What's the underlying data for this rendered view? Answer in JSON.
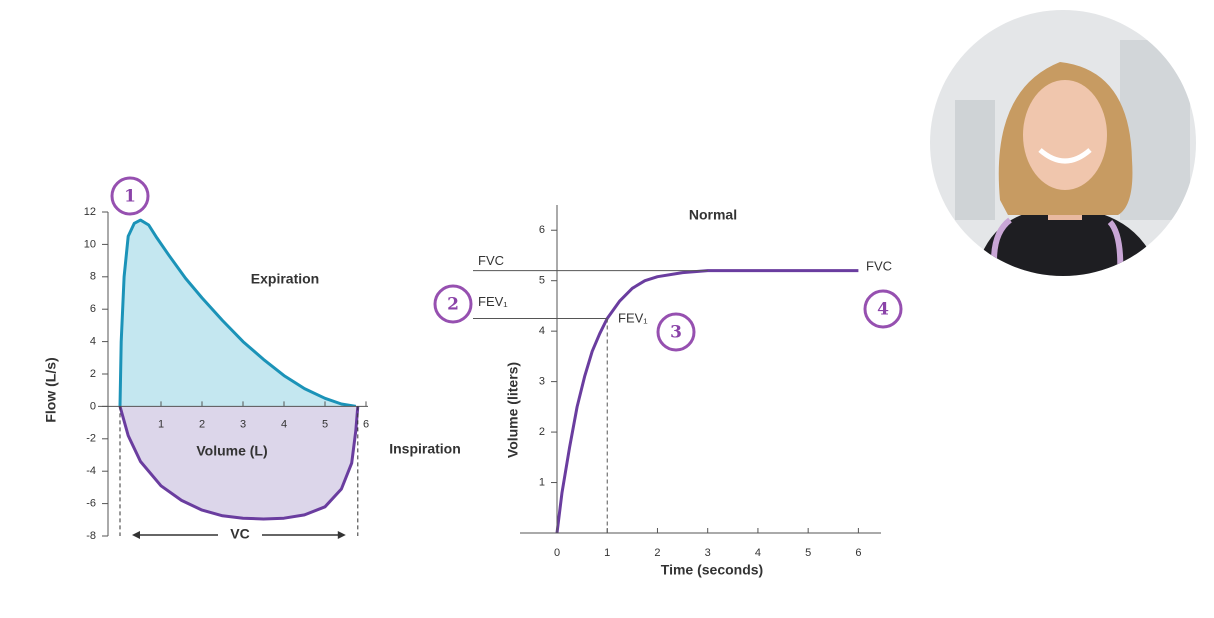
{
  "chart_data": [
    {
      "type": "area",
      "xlabel": "Volume (L)",
      "ylabel": "Flow (L/s)",
      "xlim": [
        0,
        6
      ],
      "ylim": [
        -8,
        12
      ],
      "xticks": [
        1,
        2,
        3,
        4,
        5,
        6
      ],
      "yticks": [
        12,
        10,
        8,
        6,
        4,
        2,
        0,
        -2,
        -4,
        -6,
        -8
      ],
      "series": [
        {
          "name": "Expiration",
          "color": "#1b93b8",
          "fill": "#c4e7f0",
          "x": [
            0,
            0.03,
            0.1,
            0.2,
            0.35,
            0.5,
            0.7,
            0.9,
            1.2,
            1.6,
            2.0,
            2.5,
            3.0,
            3.5,
            4.0,
            4.5,
            5.0,
            5.4,
            5.75
          ],
          "values": [
            0,
            4,
            8,
            10.5,
            11.3,
            11.5,
            11.2,
            10.4,
            9.3,
            7.9,
            6.7,
            5.3,
            4.0,
            2.9,
            1.9,
            1.1,
            0.5,
            0.15,
            0
          ]
        },
        {
          "name": "Inspiration",
          "color": "#6a3d9f",
          "fill": "#dcd6ea",
          "x": [
            0,
            0.2,
            0.5,
            1.0,
            1.5,
            2.0,
            2.5,
            3.0,
            3.5,
            4.0,
            4.5,
            5.0,
            5.4,
            5.65,
            5.75,
            5.8
          ],
          "values": [
            0,
            -1.8,
            -3.4,
            -4.9,
            -5.8,
            -6.4,
            -6.75,
            -6.9,
            -6.95,
            -6.9,
            -6.7,
            -6.2,
            -5.1,
            -3.5,
            -1.5,
            0
          ]
        }
      ],
      "annotations": [
        "VC"
      ],
      "markers": [
        "1"
      ]
    },
    {
      "type": "line",
      "title": "Normal",
      "xlabel": "Time (seconds)",
      "ylabel": "Volume (liters)",
      "xlim": [
        0,
        6.45
      ],
      "ylim": [
        0,
        6.5
      ],
      "xticks": [
        0,
        1,
        2,
        3,
        4,
        5,
        6
      ],
      "yticks": [
        1,
        2,
        3,
        4,
        5,
        6
      ],
      "series": [
        {
          "color": "#6a3d9f",
          "x": [
            0,
            0.1,
            0.25,
            0.4,
            0.55,
            0.7,
            0.85,
            1.0,
            1.25,
            1.5,
            1.75,
            2.0,
            2.5,
            3.0,
            4.0,
            5.0,
            6.0
          ],
          "values": [
            0,
            0.8,
            1.7,
            2.5,
            3.1,
            3.6,
            3.95,
            4.25,
            4.6,
            4.85,
            5.0,
            5.08,
            5.16,
            5.2,
            5.2,
            5.2,
            5.2
          ]
        }
      ],
      "reference_lines": [
        {
          "label": "FVC",
          "value": 5.2
        },
        {
          "label": "FEV₁",
          "value": 4.25,
          "x": 1
        }
      ],
      "annotations": [
        "FVC",
        "FEV₁"
      ],
      "markers": [
        "2",
        "3",
        "4"
      ]
    }
  ]
}
